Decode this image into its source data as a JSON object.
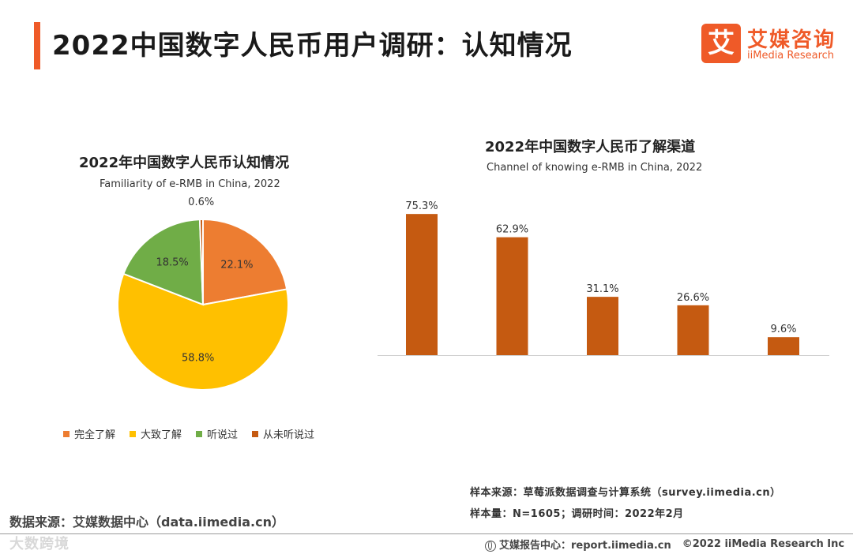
{
  "header": {
    "title": "2022中国数字人民币用户调研：认知情况",
    "logo_mark": "艾",
    "logo_cn": "艾媒咨询",
    "logo_en": "iiMedia Research"
  },
  "colors": {
    "accent": "#ef5a28",
    "bar": "#c55a11"
  },
  "chart_data": [
    {
      "type": "pie",
      "title": "2022年中国数字人民币认知情况",
      "subtitle": "Familiarity of e-RMB in China, 2022",
      "categories": [
        "完全了解",
        "大致了解",
        "听说过",
        "从未听说过"
      ],
      "values": [
        22.1,
        58.8,
        18.5,
        0.6
      ],
      "value_labels": [
        "22.1%",
        "58.8%",
        "18.5%",
        "0.6%"
      ],
      "colors": [
        "#ed7d31",
        "#ffc000",
        "#70ad47",
        "#c55a11"
      ],
      "unit": "%",
      "legend_position": "bottom"
    },
    {
      "type": "bar",
      "title": "2022年中国数字人民币了解渠道",
      "subtitle": "Channel of knowing e-RMB in China, 2022",
      "categories": [
        "",
        "",
        "",
        "",
        ""
      ],
      "values": [
        75.3,
        62.9,
        31.1,
        26.6,
        9.6
      ],
      "value_labels": [
        "75.3%",
        "62.9%",
        "31.1%",
        "26.6%",
        "9.6%"
      ],
      "unit": "%",
      "ylim": [
        0,
        80
      ],
      "grid": false
    }
  ],
  "notes": {
    "source_line": "样本来源：草莓派数据调查与计算系统（survey.iimedia.cn）",
    "sample_line": "样本量：N=1605；调研时间：2022年2月"
  },
  "data_source": "数据来源：艾媒数据中心（data.iimedia.cn）",
  "watermark": "大数跨境",
  "footer": {
    "report_center": "艾媒报告中心：report.iimedia.cn",
    "copyright": "©2022 iiMedia Research Inc"
  }
}
